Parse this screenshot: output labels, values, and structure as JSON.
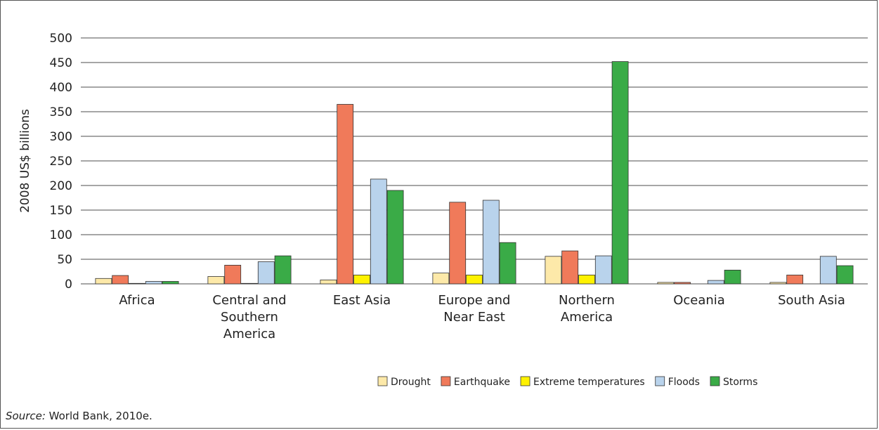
{
  "chart_data": {
    "type": "bar",
    "title": "",
    "xlabel": "",
    "ylabel": "2008 US$ billions",
    "ylim": [
      0,
      500
    ],
    "yticks": [
      0,
      50,
      100,
      150,
      200,
      250,
      300,
      350,
      400,
      450,
      500
    ],
    "grid": true,
    "legend_position": "bottom-right",
    "categories": [
      [
        "Africa"
      ],
      [
        "Central and",
        "Southern",
        "America"
      ],
      [
        "East Asia"
      ],
      [
        "Europe and",
        "Near East"
      ],
      [
        "Northern",
        "America"
      ],
      [
        "Oceania"
      ],
      [
        "South Asia"
      ]
    ],
    "series": [
      {
        "name": "Drought",
        "color": "#fde9a9",
        "values": [
          11,
          15,
          8,
          22,
          56,
          3,
          3
        ]
      },
      {
        "name": "Earthquake",
        "color": "#f07a5a",
        "values": [
          17,
          38,
          365,
          166,
          67,
          3,
          18
        ]
      },
      {
        "name": "Extreme temperatures",
        "color": "#fff200",
        "values": [
          1,
          1,
          18,
          18,
          18,
          0,
          0
        ]
      },
      {
        "name": "Floods",
        "color": "#b9d3ec",
        "values": [
          5,
          45,
          213,
          170,
          57,
          7,
          56
        ]
      },
      {
        "name": "Storms",
        "color": "#3aab47",
        "values": [
          5,
          57,
          190,
          84,
          452,
          28,
          37
        ]
      }
    ]
  },
  "source": {
    "label": "Source:",
    "text": " World Bank, 2010e."
  }
}
